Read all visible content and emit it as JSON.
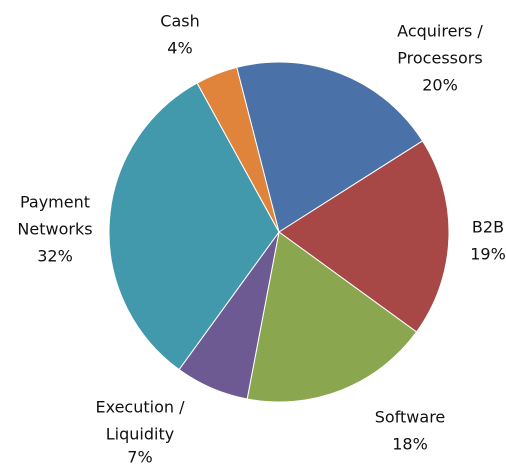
{
  "chart_data": {
    "type": "pie",
    "categories": [
      [
        "Acquirers /",
        "Processors"
      ],
      [
        "B2B"
      ],
      [
        "Software"
      ],
      [
        "Execution /",
        "Liquidity"
      ],
      [
        "Payment",
        "Networks"
      ],
      [
        "Cash"
      ]
    ],
    "values": [
      20,
      19,
      18,
      7,
      32,
      4
    ],
    "value_labels": [
      "20%",
      "19%",
      "18%",
      "7%",
      "32%",
      "4%"
    ],
    "colors": [
      "#4a72a8",
      "#a84846",
      "#8aa64e",
      "#6e5a92",
      "#4399ac",
      "#e0843c"
    ]
  }
}
